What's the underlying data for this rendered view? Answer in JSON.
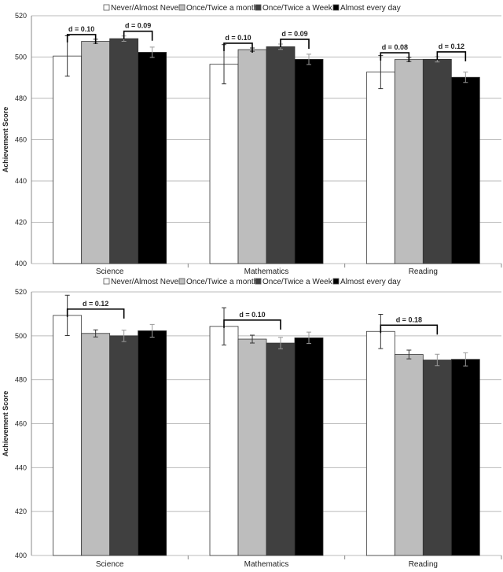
{
  "chart_data": [
    {
      "type": "bar",
      "title": "",
      "ylabel": "Achievement Score",
      "xlabel": "",
      "ylim": [
        400,
        520
      ],
      "yticks": [
        400,
        420,
        440,
        460,
        480,
        500,
        520
      ],
      "grid": true,
      "legend": "top",
      "categories": [
        "Science",
        "Mathematics",
        "Reading"
      ],
      "series": [
        {
          "name": "Never/Almost Never",
          "color": "#ffffff",
          "values": [
            500.5,
            496.5,
            492.7
          ],
          "errors": [
            9.8,
            9.5,
            8.0
          ]
        },
        {
          "name": "Once/Twice a month",
          "color": "#bdbdbd",
          "values": [
            507.6,
            503.6,
            498.8
          ],
          "errors": [
            1.0,
            0.8,
            1.0
          ]
        },
        {
          "name": "Once/Twice a Week",
          "color": "#404040",
          "values": [
            508.9,
            505.0,
            498.9
          ],
          "errors": [
            1.3,
            1.3,
            1.3
          ]
        },
        {
          "name": "Almost every day",
          "color": "#000000",
          "values": [
            502.3,
            498.9,
            490.2
          ],
          "errors": [
            2.5,
            2.5,
            2.5
          ]
        }
      ],
      "annotations": [
        {
          "category": 0,
          "from": 0,
          "to": 1,
          "label": "d = 0.10"
        },
        {
          "category": 0,
          "from": 2,
          "to": 3,
          "label": "d = 0.09"
        },
        {
          "category": 1,
          "from": 0,
          "to": 1,
          "label": "d = 0.10"
        },
        {
          "category": 1,
          "from": 2,
          "to": 3,
          "label": "d = 0.09"
        },
        {
          "category": 2,
          "from": 0,
          "to": 1,
          "label": "d = 0.08"
        },
        {
          "category": 2,
          "from": 2,
          "to": 3,
          "label": "d = 0.12"
        }
      ]
    },
    {
      "type": "bar",
      "title": "",
      "ylabel": "Achievement Score",
      "xlabel": "",
      "ylim": [
        400,
        520
      ],
      "yticks": [
        400,
        420,
        440,
        460,
        480,
        500,
        520
      ],
      "grid": true,
      "legend": "top",
      "categories": [
        "Science",
        "Mathematics",
        "Reading"
      ],
      "series": [
        {
          "name": "Never/Almost Never",
          "color": "#ffffff",
          "values": [
            509.3,
            504.3,
            502.0
          ],
          "errors": [
            9.2,
            8.5,
            7.8
          ]
        },
        {
          "name": "Once/Twice a month",
          "color": "#bdbdbd",
          "values": [
            501.1,
            498.5,
            491.5
          ],
          "errors": [
            1.6,
            1.8,
            2.0
          ]
        },
        {
          "name": "Once/Twice a Week",
          "color": "#404040",
          "values": [
            500.0,
            496.7,
            489.0
          ],
          "errors": [
            2.6,
            2.6,
            2.6
          ]
        },
        {
          "name": "Almost every day",
          "color": "#000000",
          "values": [
            502.3,
            499.1,
            489.3
          ],
          "errors": [
            2.9,
            2.6,
            3.0
          ]
        }
      ],
      "annotations": [
        {
          "category": 0,
          "from": 0,
          "to": 2,
          "label": "d = 0.12"
        },
        {
          "category": 1,
          "from": 0,
          "to": 2,
          "label": "d = 0.10"
        },
        {
          "category": 2,
          "from": 0,
          "to": 2,
          "label": "d = 0.18"
        }
      ]
    }
  ]
}
